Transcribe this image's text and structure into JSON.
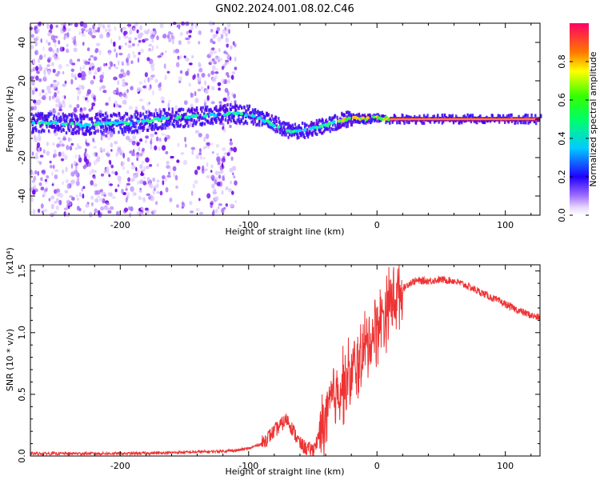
{
  "title": "GN02.2024.001.08.02.C46",
  "chart_data": [
    {
      "type": "heatmap",
      "xlabel": "Height of straight line (km)",
      "ylabel": "Frequency (Hz)",
      "xlim": [
        -270,
        127
      ],
      "ylim": [
        -50,
        50
      ],
      "x_ticks": [
        -200,
        -100,
        0,
        100
      ],
      "y_ticks": [
        -40,
        -20,
        0,
        20,
        40
      ],
      "colorbar": {
        "label": "Normalized spectral amplitude",
        "range": [
          0,
          1
        ],
        "ticks": [
          0.0,
          0.2,
          0.4,
          0.6,
          0.8
        ],
        "tick_labels": [
          "0.0",
          "0.2",
          "0.4",
          "0.6",
          "0.8"
        ]
      },
      "center_frequency_track": {
        "x": [
          -270,
          -250,
          -230,
          -210,
          -190,
          -170,
          -150,
          -130,
          -110,
          -100,
          -90,
          -80,
          -70,
          -60,
          -50,
          -40,
          -30,
          -20,
          -10,
          0,
          10,
          127
        ],
        "y": [
          -2,
          -2,
          -3,
          -2,
          -2,
          0,
          1,
          2,
          3,
          2,
          0,
          -3,
          -6,
          -6,
          -5,
          -3,
          -1,
          1,
          0,
          1,
          0,
          0
        ]
      },
      "grid": false
    },
    {
      "type": "line",
      "xlabel": "Height of straight line (km)",
      "ylabel": "SNR (10 * v/v)",
      "y_multiplier": "(x10⁴)",
      "xlim": [
        -270,
        127
      ],
      "ylim": [
        0,
        1.55
      ],
      "x_ticks": [
        -200,
        -100,
        0,
        100
      ],
      "y_ticks": [
        0.0,
        0.5,
        1.0,
        1.5
      ],
      "y_tick_labels": [
        "0.0",
        "0.5",
        "1.0",
        "1.5"
      ],
      "series": [
        {
          "color": "#ee3333",
          "x": [
            -270,
            -250,
            -230,
            -210,
            -190,
            -170,
            -150,
            -130,
            -120,
            -110,
            -100,
            -95,
            -90,
            -85,
            -80,
            -75,
            -70,
            -65,
            -60,
            -55,
            -50,
            -45,
            -40,
            -35,
            -30,
            -25,
            -20,
            -15,
            -10,
            -5,
            0,
            5,
            10,
            15,
            20,
            25,
            30,
            40,
            50,
            60,
            70,
            80,
            90,
            100,
            110,
            120,
            127
          ],
          "y": [
            0.02,
            0.02,
            0.02,
            0.02,
            0.02,
            0.025,
            0.03,
            0.035,
            0.04,
            0.045,
            0.06,
            0.08,
            0.1,
            0.15,
            0.2,
            0.25,
            0.3,
            0.2,
            0.1,
            0.06,
            0.05,
            0.15,
            0.3,
            0.45,
            0.55,
            0.6,
            0.65,
            0.75,
            0.85,
            0.95,
            1.05,
            1.15,
            1.25,
            1.3,
            1.35,
            1.4,
            1.42,
            1.42,
            1.43,
            1.42,
            1.38,
            1.33,
            1.28,
            1.23,
            1.18,
            1.14,
            1.12
          ]
        }
      ],
      "grid": false
    }
  ]
}
